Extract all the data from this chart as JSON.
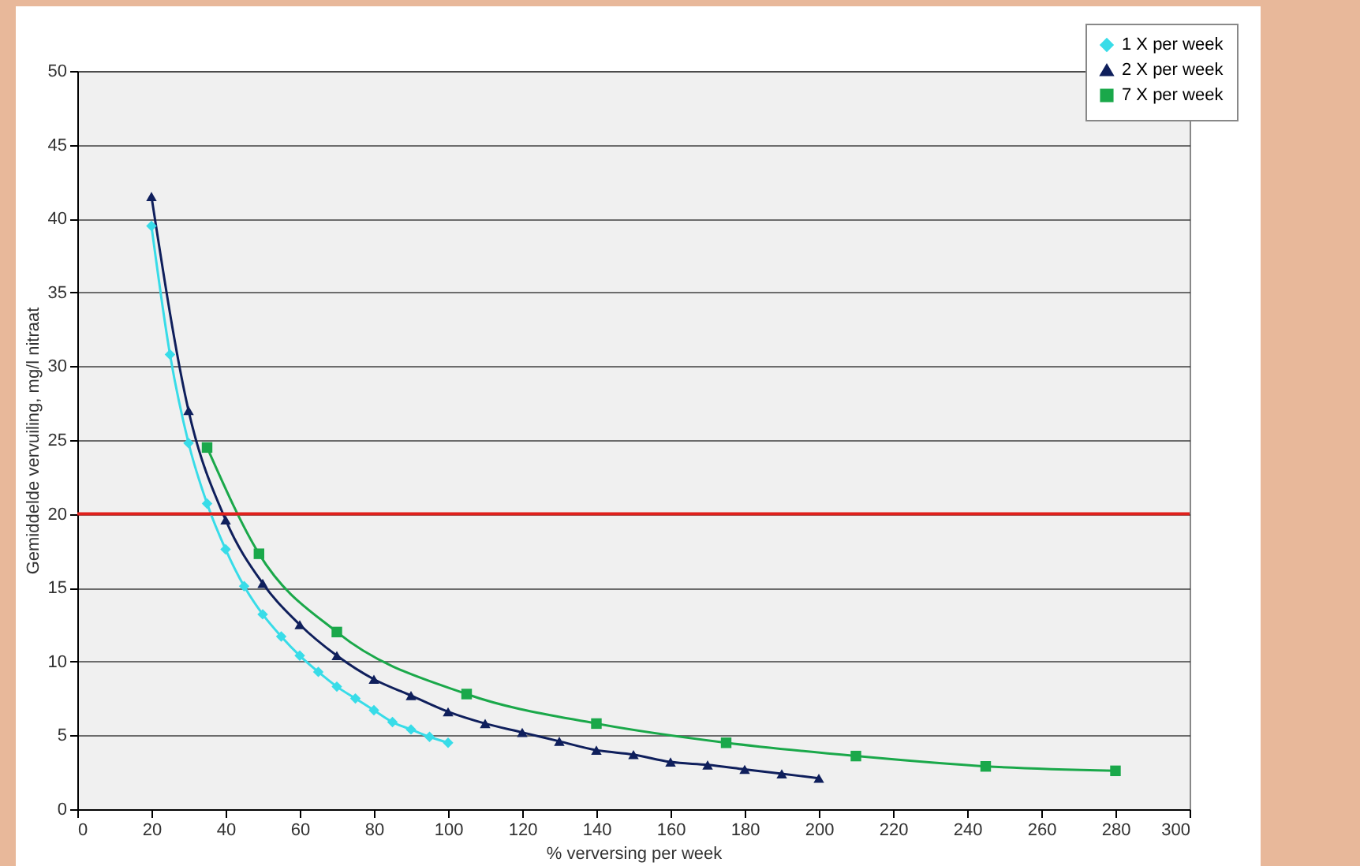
{
  "chart_data": {
    "type": "line",
    "xlabel": "% verversing per week",
    "ylabel": "Gemiddelde vervuiling, mg/l nitraat",
    "xlim": [
      0,
      300
    ],
    "xticks": [
      0,
      20,
      40,
      60,
      80,
      100,
      120,
      140,
      160,
      180,
      200,
      220,
      240,
      260,
      280,
      300
    ],
    "ylim": [
      0,
      50
    ],
    "yticks": [
      0,
      5,
      10,
      15,
      20,
      25,
      30,
      35,
      40,
      45,
      50
    ],
    "grid": "y",
    "legend": "top right",
    "line_style": "solid",
    "ref_lines": [
      {
        "axis": "y",
        "value": 20,
        "color": "#e0201c"
      }
    ],
    "series": [
      {
        "name": "1 X per week",
        "color": "#38dce8",
        "marker": "diamond",
        "x": [
          20,
          25,
          30,
          35,
          40,
          45,
          50,
          55,
          60,
          65,
          70,
          75,
          80,
          85,
          90,
          95,
          100
        ],
        "values": [
          39.5,
          30.8,
          24.8,
          20.7,
          17.6,
          15.1,
          13.2,
          11.7,
          10.4,
          9.3,
          8.3,
          7.5,
          6.7,
          5.9,
          5.4,
          4.9,
          4.5
        ]
      },
      {
        "name": "2 X per week",
        "color": "#0f1f5c",
        "marker": "triangle",
        "x": [
          20,
          30,
          40,
          50,
          60,
          70,
          80,
          90,
          100,
          110,
          120,
          130,
          140,
          150,
          160,
          170,
          180,
          190,
          200
        ],
        "values": [
          41.5,
          27,
          19.6,
          15.3,
          12.5,
          10.4,
          8.8,
          7.7,
          6.6,
          5.8,
          5.2,
          4.6,
          4.0,
          3.7,
          3.2,
          3.0,
          2.7,
          2.4,
          2.1
        ]
      },
      {
        "name": "7 X per week",
        "color": "#1aa84a",
        "marker": "square",
        "x": [
          35,
          49,
          70,
          105,
          140,
          175,
          210,
          245,
          280
        ],
        "values": [
          24.5,
          17.3,
          12.0,
          7.8,
          5.8,
          4.5,
          3.6,
          2.9,
          2.6
        ]
      }
    ]
  }
}
